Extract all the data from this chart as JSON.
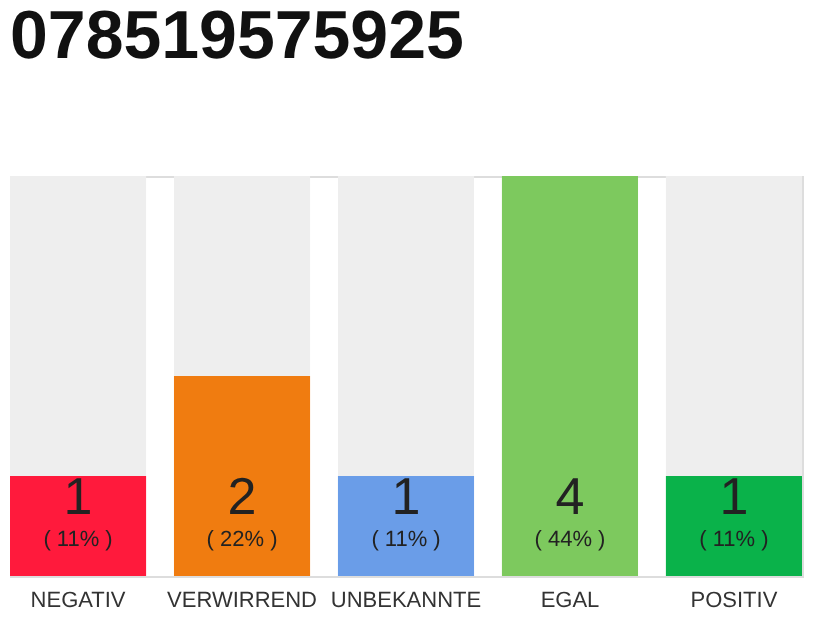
{
  "chart_data": {
    "type": "bar",
    "title": "078519575925",
    "stacked": true,
    "categories": [
      "NEGATIV",
      "VERWIRREND",
      "UNBEKANNTE",
      "EGAL",
      "POSITIV"
    ],
    "series": [
      {
        "colors": [
          "#ff1a3c",
          "#f07c10",
          "#6a9de8",
          "#7dc95e",
          "#0ab24a"
        ],
        "values": [
          1,
          2,
          1,
          4,
          1
        ],
        "value_labels": [
          "1",
          "2",
          "1",
          "4",
          "1"
        ]
      },
      {
        "color": "#eeeeee",
        "values": [
          3,
          2,
          3,
          0,
          3
        ]
      }
    ],
    "annotations": [
      "( 11% )",
      "( 22% )",
      "( 11% )",
      "( 44% )",
      "( 11% )"
    ],
    "tick_labels": "x",
    "legend": false
  }
}
